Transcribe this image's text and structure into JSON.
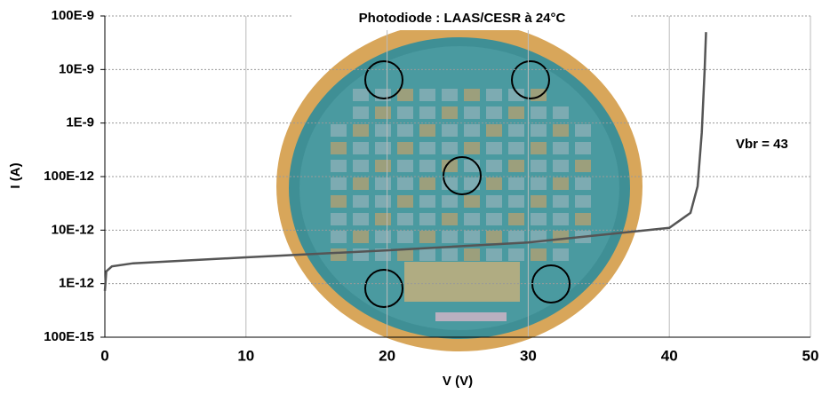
{
  "chart_data": {
    "type": "line",
    "title": "Photodiode : LAAS/CESR à 24°C",
    "x_label": "V (V)",
    "y_label": "I (A)",
    "annotation": "Vbr = 43",
    "yscale": "log",
    "grid": true,
    "xlim": [
      0,
      50
    ],
    "xticks": [
      0,
      10,
      20,
      30,
      40,
      50
    ],
    "ylim": [
      1e-13,
      1e-07
    ],
    "yticks": [
      {
        "value": 1e-13,
        "label": "100E-15"
      },
      {
        "value": 1e-12,
        "label": "1E-12"
      },
      {
        "value": 1e-11,
        "label": "10E-12"
      },
      {
        "value": 1e-10,
        "label": "100E-12"
      },
      {
        "value": 1e-09,
        "label": "1E-9"
      },
      {
        "value": 1e-08,
        "label": "10E-9"
      },
      {
        "value": 1e-07,
        "label": "100E-9"
      }
    ],
    "x": [
      0,
      0.1,
      0.5,
      2,
      10,
      20,
      30,
      40,
      41.5,
      42,
      42.3,
      42.5,
      42.6
    ],
    "series": [
      {
        "color": "#555555",
        "values": [
          7.3e-13,
          1.7e-12,
          2.1e-12,
          2.4e-12,
          3.1e-12,
          4.2e-12,
          5.9e-12,
          1.1e-11,
          2.1e-11,
          6.6e-11,
          6.6e-10,
          9.5e-09,
          5e-08
        ]
      }
    ]
  }
}
